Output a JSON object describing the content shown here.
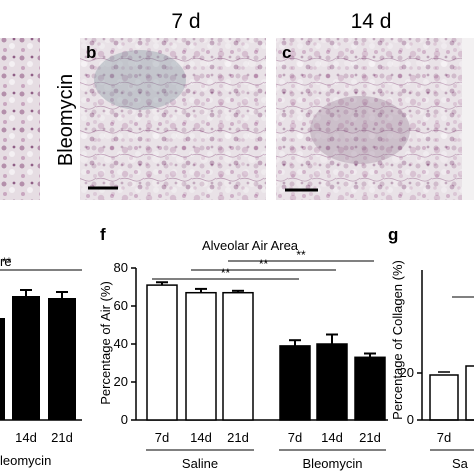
{
  "top": {
    "col_labels": [
      "7 d",
      "14 d"
    ],
    "row_label": "Bleomycin",
    "panel_letters": [
      "b",
      "c"
    ]
  },
  "left_panel": {
    "title_fragment": "re",
    "sig": "**",
    "x_ticks": [
      "14d",
      "21d"
    ],
    "group_fragment": "leomycin"
  },
  "panel_f": {
    "letter": "f",
    "chart_data": {
      "type": "bar",
      "title": "Alveolar Air Area",
      "ylabel": "Percentage of Air (%)",
      "ylim": [
        0,
        80
      ],
      "yticks": [
        "0",
        "20",
        "40",
        "60",
        "80"
      ],
      "categories": [
        "7d",
        "14d",
        "21d",
        "7d",
        "14d",
        "21d"
      ],
      "groups": [
        {
          "name": "Saline",
          "indices": [
            0,
            1,
            2
          ],
          "fill": "#ffffff"
        },
        {
          "name": "Bleomycin",
          "indices": [
            3,
            4,
            5
          ],
          "fill": "#000000"
        }
      ],
      "values": [
        71,
        67,
        67,
        39,
        40,
        33
      ],
      "errors": [
        1.5,
        2,
        1,
        3,
        5,
        2
      ],
      "significance": [
        {
          "from": 0,
          "to": 3,
          "label": "**"
        },
        {
          "from": 1,
          "to": 4,
          "label": "**"
        },
        {
          "from": 2,
          "to": 5,
          "label": "**"
        }
      ]
    }
  },
  "panel_g": {
    "letter": "g",
    "ylabel": "Percentage of Collagen (%)",
    "yticks": [
      "0",
      "20"
    ],
    "x_ticks": [
      "7d"
    ],
    "group_fragment": "Sa"
  }
}
